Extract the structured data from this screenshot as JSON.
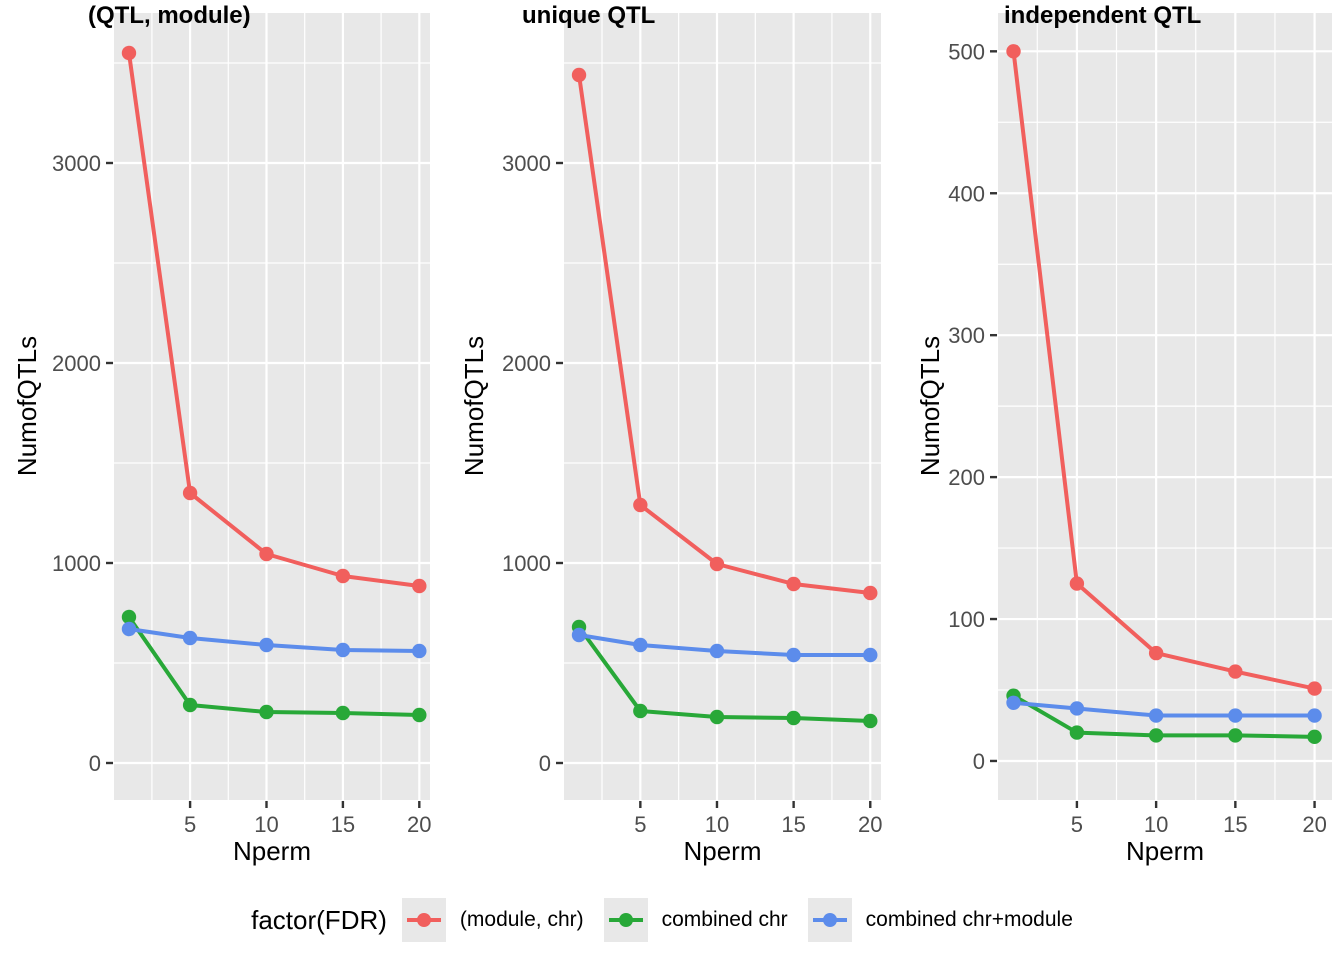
{
  "figure": {
    "legend": {
      "title": "factor(FDR)",
      "items": [
        {
          "label": "(module, chr)",
          "color": "#F15F5D"
        },
        {
          "label": "combined chr",
          "color": "#28A838"
        },
        {
          "label": "combined chr+module",
          "color": "#5C8CEB"
        }
      ]
    },
    "colors": {
      "panel_background": "#E8E8E8",
      "gridline": "#FFFFFF",
      "tick_mark": "#333333",
      "tick_label": "#4D4D4D"
    }
  },
  "chart_data": [
    {
      "type": "line",
      "title": "(QTL, module)",
      "xlabel": "Nperm",
      "ylabel": "NumofQTLs",
      "x": [
        1,
        5,
        10,
        15,
        20
      ],
      "x_ticks": [
        5,
        10,
        15,
        20
      ],
      "y_ticks": [
        0,
        1000,
        2000,
        3000
      ],
      "ylim": [
        0,
        3750
      ],
      "grid": "major+minor",
      "legend_position": "bottom",
      "series": [
        {
          "name": "(module, chr)",
          "color": "#F15F5D",
          "values": [
            3550,
            1350,
            1045,
            935,
            885
          ]
        },
        {
          "name": "combined chr",
          "color": "#28A838",
          "values": [
            730,
            290,
            255,
            250,
            240
          ]
        },
        {
          "name": "combined chr+module",
          "color": "#5C8CEB",
          "values": [
            670,
            625,
            590,
            565,
            560
          ]
        }
      ]
    },
    {
      "type": "line",
      "title": "unique QTL",
      "xlabel": "Nperm",
      "ylabel": "NumofQTLs",
      "x": [
        1,
        5,
        10,
        15,
        20
      ],
      "x_ticks": [
        5,
        10,
        15,
        20
      ],
      "y_ticks": [
        0,
        1000,
        2000,
        3000
      ],
      "ylim": [
        0,
        3750
      ],
      "grid": "major+minor",
      "legend_position": "bottom",
      "series": [
        {
          "name": "(module, chr)",
          "color": "#F15F5D",
          "values": [
            3440,
            1290,
            995,
            895,
            850
          ]
        },
        {
          "name": "combined chr",
          "color": "#28A838",
          "values": [
            680,
            260,
            230,
            225,
            210
          ]
        },
        {
          "name": "combined chr+module",
          "color": "#5C8CEB",
          "values": [
            640,
            590,
            560,
            540,
            540
          ]
        }
      ]
    },
    {
      "type": "line",
      "title": "independent QTL",
      "xlabel": "Nperm",
      "ylabel": "NumofQTLs",
      "x": [
        1,
        5,
        10,
        15,
        20
      ],
      "x_ticks": [
        5,
        10,
        15,
        20
      ],
      "y_ticks": [
        0,
        100,
        200,
        300,
        400,
        500
      ],
      "ylim": [
        0,
        527
      ],
      "grid": "major+minor",
      "legend_position": "bottom",
      "series": [
        {
          "name": "(module, chr)",
          "color": "#F15F5D",
          "values": [
            500,
            125,
            76,
            63,
            51
          ]
        },
        {
          "name": "combined chr",
          "color": "#28A838",
          "values": [
            46,
            20,
            18,
            18,
            17
          ]
        },
        {
          "name": "combined chr+module",
          "color": "#5C8CEB",
          "values": [
            41,
            37,
            32,
            32,
            32
          ]
        }
      ]
    }
  ]
}
